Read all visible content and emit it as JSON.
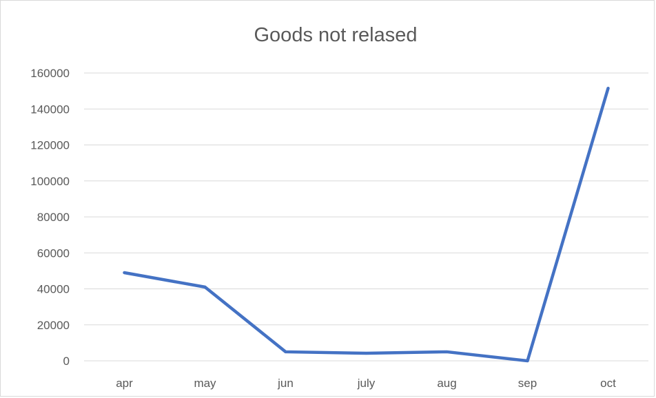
{
  "chart_data": {
    "type": "line",
    "title": "Goods not relased",
    "xlabel": "",
    "ylabel": "",
    "categories": [
      "apr",
      "may",
      "jun",
      "july",
      "aug",
      "sep",
      "oct"
    ],
    "series": [
      {
        "values": [
          49000,
          41000,
          5000,
          4200,
          5000,
          0,
          151500
        ],
        "color": "#4472c4"
      }
    ],
    "ylim": [
      0,
      160000
    ],
    "yticks": [
      0,
      20000,
      40000,
      60000,
      80000,
      100000,
      120000,
      140000,
      160000
    ],
    "ytick_labels": [
      "0",
      "20000",
      "40000",
      "60000",
      "80000",
      "100000",
      "120000",
      "140000",
      "160000"
    ],
    "grid": true,
    "legend": "none"
  }
}
